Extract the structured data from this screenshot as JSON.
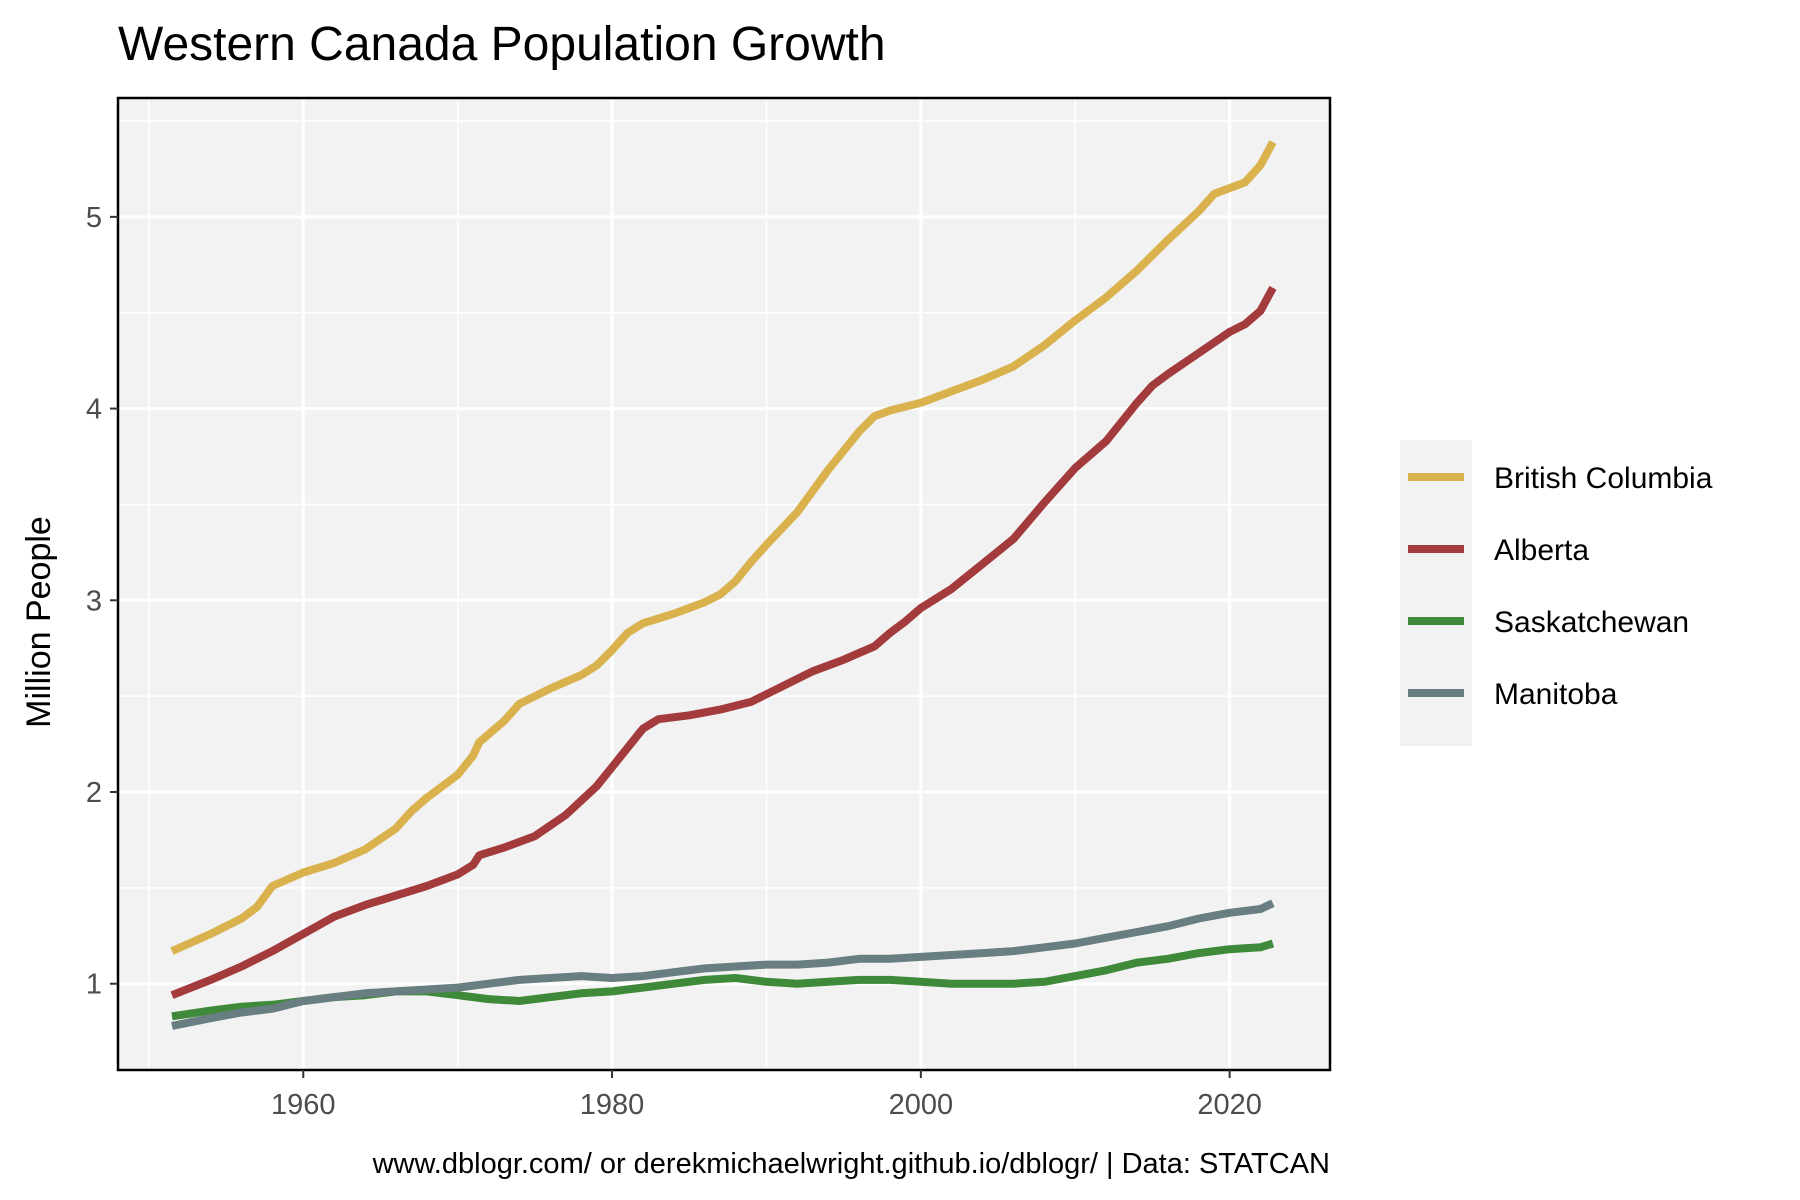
{
  "chart_data": {
    "type": "line",
    "title": "Western Canada Population Growth",
    "xlabel": "",
    "ylabel": "Million People",
    "caption": "www.dblogr.com/ or derekmichaelwright.github.io/dblogr/ | Data: STATCAN",
    "xlim": [
      1948,
      2026.5
    ],
    "ylim": [
      0.55,
      5.62
    ],
    "x_ticks": [
      1960,
      1980,
      2000,
      2020
    ],
    "y_ticks": [
      1,
      2,
      3,
      4,
      5
    ],
    "grid": true,
    "legend_position": "right",
    "colors": {
      "panel_background": "#f2f2f2",
      "grid": "#ffffff",
      "legend_background": "#f2f2f2"
    },
    "series": [
      {
        "name": "British Columbia",
        "color": "#d9b24e",
        "points": [
          [
            1951.5,
            1.17
          ],
          [
            1954,
            1.26
          ],
          [
            1956,
            1.34
          ],
          [
            1957,
            1.4
          ],
          [
            1958,
            1.51
          ],
          [
            1960,
            1.58
          ],
          [
            1962,
            1.63
          ],
          [
            1964,
            1.7
          ],
          [
            1966,
            1.81
          ],
          [
            1967,
            1.9
          ],
          [
            1968,
            1.97
          ],
          [
            1970,
            2.09
          ],
          [
            1971,
            2.19
          ],
          [
            1971.4,
            2.26
          ],
          [
            1973,
            2.37
          ],
          [
            1974,
            2.46
          ],
          [
            1975,
            2.5
          ],
          [
            1976,
            2.54
          ],
          [
            1978,
            2.61
          ],
          [
            1979,
            2.66
          ],
          [
            1980,
            2.74
          ],
          [
            1981,
            2.83
          ],
          [
            1982,
            2.88
          ],
          [
            1984,
            2.93
          ],
          [
            1986,
            2.99
          ],
          [
            1987,
            3.03
          ],
          [
            1988,
            3.1
          ],
          [
            1989,
            3.2
          ],
          [
            1990,
            3.29
          ],
          [
            1992,
            3.46
          ],
          [
            1994,
            3.68
          ],
          [
            1996,
            3.88
          ],
          [
            1997,
            3.96
          ],
          [
            1998,
            3.99
          ],
          [
            2000,
            4.03
          ],
          [
            2002,
            4.09
          ],
          [
            2004,
            4.15
          ],
          [
            2006,
            4.22
          ],
          [
            2008,
            4.33
          ],
          [
            2010,
            4.46
          ],
          [
            2012,
            4.58
          ],
          [
            2014,
            4.72
          ],
          [
            2016,
            4.88
          ],
          [
            2018,
            5.03
          ],
          [
            2019,
            5.12
          ],
          [
            2020,
            5.15
          ],
          [
            2021,
            5.18
          ],
          [
            2022,
            5.27
          ],
          [
            2022.8,
            5.39
          ]
        ]
      },
      {
        "name": "Alberta",
        "color": "#a33a3c",
        "points": [
          [
            1951.5,
            0.94
          ],
          [
            1954,
            1.02
          ],
          [
            1956,
            1.09
          ],
          [
            1958,
            1.17
          ],
          [
            1960,
            1.26
          ],
          [
            1962,
            1.35
          ],
          [
            1964,
            1.41
          ],
          [
            1966,
            1.46
          ],
          [
            1968,
            1.51
          ],
          [
            1970,
            1.57
          ],
          [
            1971,
            1.62
          ],
          [
            1971.4,
            1.67
          ],
          [
            1973,
            1.71
          ],
          [
            1975,
            1.77
          ],
          [
            1977,
            1.88
          ],
          [
            1979,
            2.03
          ],
          [
            1980,
            2.13
          ],
          [
            1981,
            2.23
          ],
          [
            1982,
            2.33
          ],
          [
            1983,
            2.38
          ],
          [
            1985,
            2.4
          ],
          [
            1987,
            2.43
          ],
          [
            1989,
            2.47
          ],
          [
            1991,
            2.55
          ],
          [
            1993,
            2.63
          ],
          [
            1995,
            2.69
          ],
          [
            1997,
            2.76
          ],
          [
            1998,
            2.83
          ],
          [
            1999,
            2.89
          ],
          [
            2000,
            2.96
          ],
          [
            2002,
            3.06
          ],
          [
            2004,
            3.19
          ],
          [
            2006,
            3.32
          ],
          [
            2008,
            3.51
          ],
          [
            2010,
            3.69
          ],
          [
            2012,
            3.83
          ],
          [
            2014,
            4.03
          ],
          [
            2015,
            4.12
          ],
          [
            2016,
            4.18
          ],
          [
            2018,
            4.29
          ],
          [
            2020,
            4.4
          ],
          [
            2021,
            4.44
          ],
          [
            2022,
            4.51
          ],
          [
            2022.8,
            4.63
          ]
        ]
      },
      {
        "name": "Saskatchewan",
        "color": "#3f8a3a",
        "points": [
          [
            1951.5,
            0.83
          ],
          [
            1954,
            0.86
          ],
          [
            1956,
            0.88
          ],
          [
            1958,
            0.89
          ],
          [
            1960,
            0.91
          ],
          [
            1962,
            0.93
          ],
          [
            1964,
            0.94
          ],
          [
            1966,
            0.96
          ],
          [
            1968,
            0.96
          ],
          [
            1970,
            0.94
          ],
          [
            1972,
            0.92
          ],
          [
            1974,
            0.91
          ],
          [
            1976,
            0.93
          ],
          [
            1978,
            0.95
          ],
          [
            1980,
            0.96
          ],
          [
            1982,
            0.98
          ],
          [
            1984,
            1.0
          ],
          [
            1986,
            1.02
          ],
          [
            1988,
            1.03
          ],
          [
            1990,
            1.01
          ],
          [
            1992,
            1.0
          ],
          [
            1994,
            1.01
          ],
          [
            1996,
            1.02
          ],
          [
            1998,
            1.02
          ],
          [
            2000,
            1.01
          ],
          [
            2002,
            1.0
          ],
          [
            2004,
            1.0
          ],
          [
            2006,
            1.0
          ],
          [
            2008,
            1.01
          ],
          [
            2010,
            1.04
          ],
          [
            2012,
            1.07
          ],
          [
            2014,
            1.11
          ],
          [
            2016,
            1.13
          ],
          [
            2018,
            1.16
          ],
          [
            2020,
            1.18
          ],
          [
            2022,
            1.19
          ],
          [
            2022.8,
            1.21
          ]
        ]
      },
      {
        "name": "Manitoba",
        "color": "#687e80",
        "points": [
          [
            1951.5,
            0.78
          ],
          [
            1954,
            0.82
          ],
          [
            1956,
            0.85
          ],
          [
            1958,
            0.87
          ],
          [
            1960,
            0.91
          ],
          [
            1962,
            0.93
          ],
          [
            1964,
            0.95
          ],
          [
            1966,
            0.96
          ],
          [
            1968,
            0.97
          ],
          [
            1970,
            0.98
          ],
          [
            1972,
            1.0
          ],
          [
            1974,
            1.02
          ],
          [
            1976,
            1.03
          ],
          [
            1978,
            1.04
          ],
          [
            1980,
            1.03
          ],
          [
            1982,
            1.04
          ],
          [
            1984,
            1.06
          ],
          [
            1986,
            1.08
          ],
          [
            1988,
            1.09
          ],
          [
            1990,
            1.1
          ],
          [
            1992,
            1.1
          ],
          [
            1994,
            1.11
          ],
          [
            1996,
            1.13
          ],
          [
            1998,
            1.13
          ],
          [
            2000,
            1.14
          ],
          [
            2002,
            1.15
          ],
          [
            2004,
            1.16
          ],
          [
            2006,
            1.17
          ],
          [
            2008,
            1.19
          ],
          [
            2010,
            1.21
          ],
          [
            2012,
            1.24
          ],
          [
            2014,
            1.27
          ],
          [
            2016,
            1.3
          ],
          [
            2018,
            1.34
          ],
          [
            2020,
            1.37
          ],
          [
            2022,
            1.39
          ],
          [
            2022.8,
            1.42
          ]
        ]
      }
    ]
  }
}
